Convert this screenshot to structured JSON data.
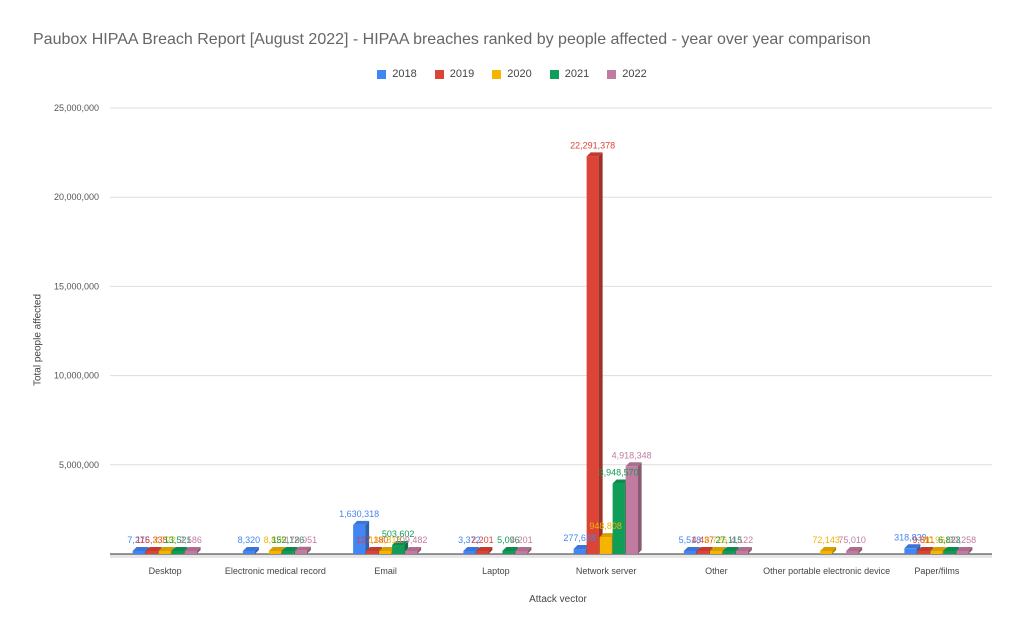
{
  "chart_data": {
    "type": "bar",
    "title": "Paubox HIPAA Breach Report [August 2022] - HIPAA breaches ranked by people affected - year over year comparison",
    "xlabel": "Attack vector",
    "ylabel": "Total people affected",
    "ylim": [
      0,
      25000000
    ],
    "yticks": [
      {
        "value": 5000000,
        "label": "5,000,000"
      },
      {
        "value": 10000000,
        "label": "10,000,000"
      },
      {
        "value": 15000000,
        "label": "15,000,000"
      },
      {
        "value": 20000000,
        "label": "20,000,000"
      },
      {
        "value": 25000000,
        "label": "25,000,000"
      }
    ],
    "grid": true,
    "legend_position": "top",
    "categories": [
      "Desktop",
      "Electronic medical record",
      "Email",
      "Laptop",
      "Network server",
      "Other",
      "Other portable electronic device",
      "Paper/films"
    ],
    "series": [
      {
        "name": "2018",
        "color": "#4285f4",
        "values": [
          7275,
          8320,
          1630318,
          3372,
          277628,
          5518,
          null,
          318839
        ],
        "labels": [
          "7,275",
          "8,320",
          "1,630,318",
          "3,372",
          "277,628",
          "5,518",
          "",
          "318,839"
        ]
      },
      {
        "name": "2019",
        "color": "#db4437",
        "values": [
          116335,
          null,
          127180,
          2201,
          22291378,
          4437,
          null,
          9811
        ],
        "labels": [
          "116,335",
          "",
          "127,180",
          "2,201",
          "22,291,378",
          "4,437",
          "",
          "9,811"
        ]
      },
      {
        "name": "2020",
        "color": "#f4b400",
        "values": [
          2722,
          8825,
          132818,
          null,
          948808,
          6726,
          72143,
          80961
        ],
        "labels": [
          "2,722",
          "8,825",
          "132,818",
          "",
          "948,808",
          "6,726",
          "72,143",
          "80,961"
        ]
      },
      {
        "name": "2021",
        "color": "#0f9d58",
        "values": [
          13521,
          152126,
          503602,
          5096,
          3948570,
          27115,
          null,
          6823
        ],
        "labels": [
          "13,521",
          "152,126",
          "503,602",
          "5,096",
          "3,948,570",
          "27,115",
          "",
          "6,823"
        ]
      },
      {
        "name": "2022",
        "color": "#c27ba0",
        "values": [
          2586,
          178951,
          109482,
          4201,
          4918348,
          4122,
          75010,
          39258
        ],
        "labels": [
          "2,586",
          "178,951",
          "109,482",
          "4,201",
          "4,918,348",
          "4,122",
          "75,010",
          "39,258"
        ]
      }
    ]
  }
}
